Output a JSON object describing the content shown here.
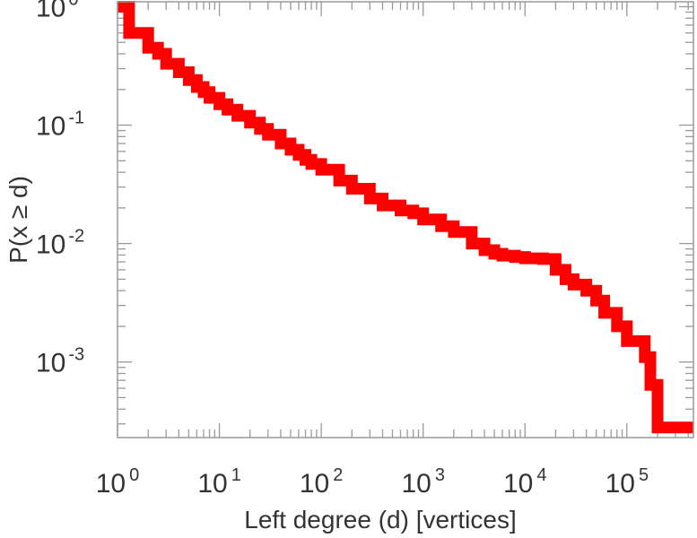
{
  "chart_data": {
    "type": "line",
    "step": true,
    "xscale": "log",
    "yscale": "log",
    "xlabel": "Left degree (d) [vertices]",
    "ylabel": "P(x ≥ d)",
    "xlim": [
      1,
      450000
    ],
    "ylim": [
      0.00023,
      1.1
    ],
    "grid": false,
    "legend": "none",
    "x_ticks": [
      {
        "base": "10",
        "exp": "0",
        "value": 1
      },
      {
        "base": "10",
        "exp": "1",
        "value": 10
      },
      {
        "base": "10",
        "exp": "2",
        "value": 100
      },
      {
        "base": "10",
        "exp": "3",
        "value": 1000
      },
      {
        "base": "10",
        "exp": "4",
        "value": 10000
      },
      {
        "base": "10",
        "exp": "5",
        "value": 100000
      }
    ],
    "y_ticks": [
      {
        "base": "10",
        "exp": "0",
        "value": 1
      },
      {
        "base": "10",
        "exp": "-1",
        "value": 0.1
      },
      {
        "base": "10",
        "exp": "-2",
        "value": 0.01
      },
      {
        "base": "10",
        "exp": "-3",
        "value": 0.001
      }
    ],
    "series": [
      {
        "color": "#ff0000",
        "x": [
          1,
          1.3,
          2,
          2.5,
          3,
          4,
          5,
          6,
          7,
          8,
          10,
          12,
          15,
          20,
          25,
          30,
          40,
          50,
          60,
          70,
          80,
          100,
          150,
          200,
          300,
          400,
          600,
          800,
          1000,
          1500,
          2000,
          3000,
          4000,
          5000,
          6000,
          8000,
          10000,
          15000,
          20000,
          25000,
          30000,
          40000,
          50000,
          60000,
          80000,
          100000,
          150000,
          170000,
          200000,
          300000,
          400000
        ],
        "y": [
          1.0,
          0.6,
          0.45,
          0.4,
          0.33,
          0.28,
          0.24,
          0.21,
          0.19,
          0.17,
          0.15,
          0.135,
          0.12,
          0.105,
          0.093,
          0.083,
          0.07,
          0.062,
          0.056,
          0.051,
          0.047,
          0.042,
          0.034,
          0.029,
          0.024,
          0.021,
          0.019,
          0.018,
          0.016,
          0.014,
          0.0125,
          0.01,
          0.0088,
          0.0082,
          0.0079,
          0.0077,
          0.0075,
          0.0074,
          0.006,
          0.005,
          0.0045,
          0.004,
          0.0033,
          0.0026,
          0.002,
          0.0015,
          0.0011,
          0.00064,
          0.00028,
          0.00028,
          0.00028
        ]
      }
    ]
  }
}
